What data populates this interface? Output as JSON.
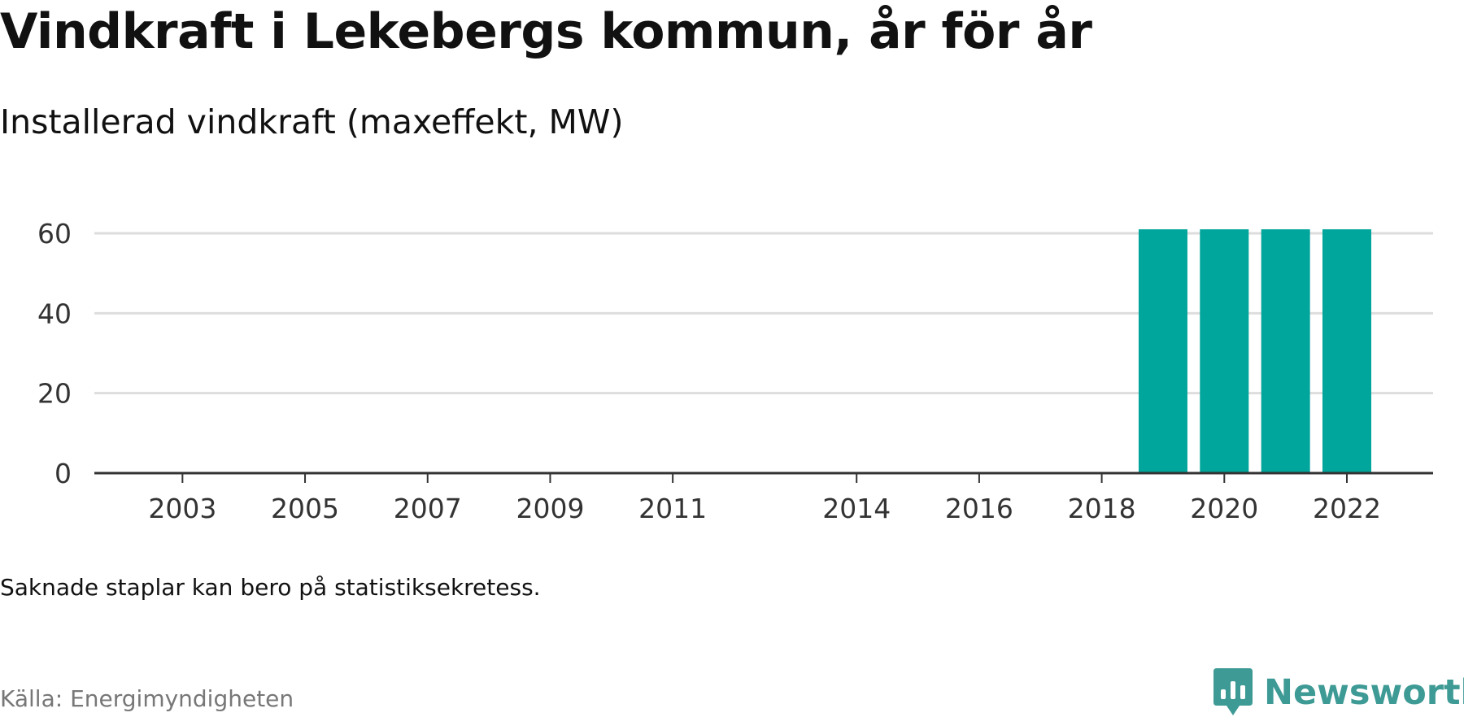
{
  "title": "Vindkraft i Lekebergs kommun, år för år",
  "subtitle": "Installerad vindkraft (maxeffekt, MW)",
  "note": "Saknade staplar kan bero på statistiksekretess.",
  "source": "Källa: Energimyndigheten",
  "brand": {
    "name": "Newsworthy",
    "color": "#3e9a95",
    "icon": "newsworthy-logo-icon"
  },
  "chart_data": {
    "type": "bar",
    "title": "Vindkraft i Lekebergs kommun, år för år",
    "subtitle": "Installerad vindkraft (maxeffekt, MW)",
    "categories": [
      2002,
      2003,
      2004,
      2005,
      2006,
      2007,
      2008,
      2009,
      2010,
      2011,
      2012,
      2013,
      2014,
      2015,
      2016,
      2017,
      2018,
      2019,
      2020,
      2021,
      2022
    ],
    "values": [
      0,
      0,
      0,
      0,
      0,
      0,
      0,
      0,
      0,
      0,
      null,
      null,
      0,
      0,
      0,
      0,
      0,
      61,
      61,
      61,
      61
    ],
    "x_tick_labels": [
      "2003",
      "2005",
      "2007",
      "2009",
      "2011",
      "2014",
      "2016",
      "2018",
      "2020",
      "2022"
    ],
    "y_ticks": [
      0,
      20,
      40,
      60
    ],
    "ylim": [
      0,
      60
    ],
    "xlabel": "",
    "ylabel": "",
    "grid": true,
    "bar_color": "#00a59b"
  }
}
